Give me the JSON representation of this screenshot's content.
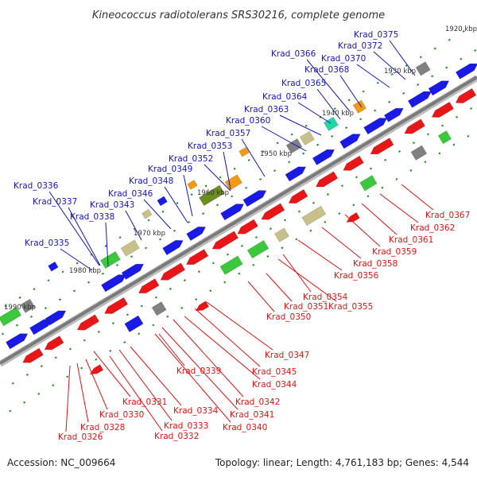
{
  "title": "Kineococcus radiotolerans SRS30216, complete genome",
  "footer": {
    "accession": "Accession: NC_009664",
    "stats": "Topology: linear; Length: 4,761,183 bp; Genes: 4,544"
  },
  "colors": {
    "upper_label": "#1414c8",
    "lower_label": "#e81010",
    "blue_gene": "#1a1ae6",
    "red_gene": "#e81616",
    "green": "#3cc83c",
    "olive": "#6b8c1e",
    "khaki": "#c8c08a",
    "orange": "#f59a10",
    "gray": "#808080",
    "teal": "#22d8a0",
    "tick": "#228b22",
    "axis": "#8a8a8a"
  },
  "kbp_ticks": [
    "1920 kbp",
    "1930 kbp",
    "1940 kbp",
    "1950 kbp",
    "1960 kbp",
    "1970 kbp",
    "1980 kbp",
    "1990 kbp"
  ],
  "upper_labels": [
    "Krad_0375",
    "Krad_0372",
    "Krad_0370",
    "Krad_0368",
    "Krad_0366",
    "Krad_0365",
    "Krad_0364",
    "Krad_0363",
    "Krad_0360",
    "Krad_0357",
    "Krad_0353",
    "Krad_0352",
    "Krad_0349",
    "Krad_0348",
    "Krad_0346",
    "Krad_0343",
    "Krad_0338",
    "Krad_0337",
    "Krad_0336",
    "Krad_0335"
  ],
  "lower_labels": [
    "Krad_0367",
    "Krad_0362",
    "Krad_0361",
    "Krad_0359",
    "Krad_0358",
    "Krad_0356",
    "Krad_0354",
    "Krad_0355",
    "Krad_0351",
    "Krad_0350",
    "Krad_0347",
    "Krad_0345",
    "Krad_0344",
    "Krad_0342",
    "Krad_0341",
    "Krad_0340",
    "Krad_0339",
    "Krad_0334",
    "Krad_0333",
    "Krad_0332",
    "Krad_0331",
    "Krad_0330",
    "Krad_0328",
    "Krad_0326"
  ]
}
